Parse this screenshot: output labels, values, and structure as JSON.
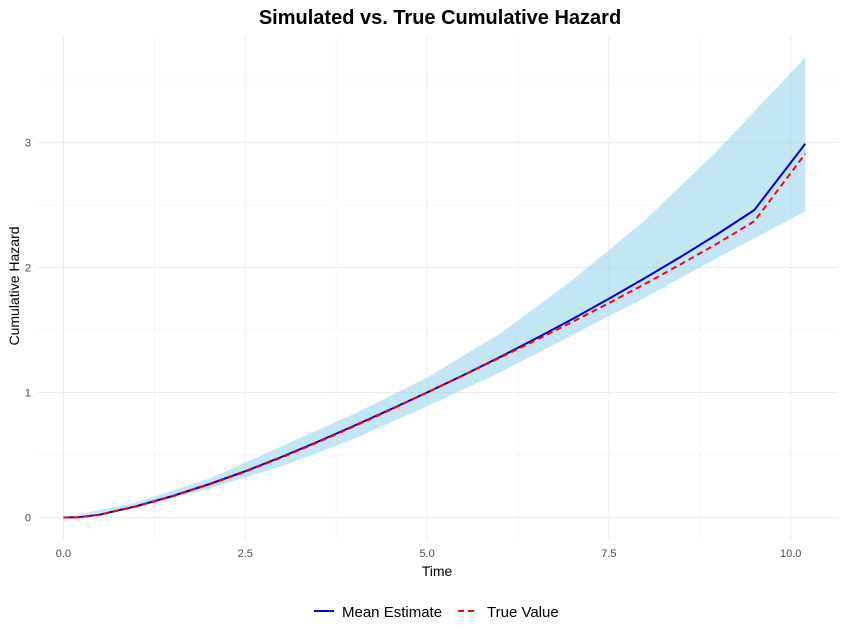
{
  "chart_data": {
    "type": "line",
    "title": "Simulated vs. True Cumulative Hazard",
    "xlabel": "Time",
    "ylabel": "Cumulative Hazard",
    "xlim": [
      -0.35,
      10.65
    ],
    "ylim": [
      -0.18,
      3.86
    ],
    "x_ticks": [
      0,
      2.5,
      5,
      7.5,
      10
    ],
    "x_tick_labels": [
      "0.0",
      "2.5",
      "5.0",
      "7.5",
      "10.0"
    ],
    "y_ticks": [
      0,
      1,
      2,
      3
    ],
    "y_tick_labels": [
      "0",
      "1",
      "2",
      "3"
    ],
    "grid": true,
    "legend_position": "bottom",
    "band": {
      "fill_color": "#87ceeb",
      "fill_opacity": 0.5,
      "x": [
        0,
        1,
        2,
        3,
        4,
        5,
        6,
        7,
        8,
        9,
        10.2
      ],
      "lower": [
        0,
        0.08,
        0.23,
        0.41,
        0.63,
        0.89,
        1.16,
        1.46,
        1.76,
        2.08,
        2.45
      ],
      "upper": [
        0,
        0.12,
        0.31,
        0.57,
        0.83,
        1.12,
        1.47,
        1.9,
        2.38,
        2.94,
        3.68
      ]
    },
    "series": [
      {
        "name": "Mean Estimate",
        "color": "#0000cd",
        "dash": "solid",
        "x": [
          0,
          0.2,
          0.5,
          1,
          1.5,
          2,
          2.5,
          3,
          3.5,
          4,
          4.5,
          5,
          5.5,
          6,
          6.5,
          7,
          7.5,
          8,
          8.5,
          9,
          9.5,
          10.2
        ],
        "y": [
          0,
          0.002,
          0.023,
          0.09,
          0.172,
          0.266,
          0.37,
          0.485,
          0.607,
          0.735,
          0.866,
          1.0,
          1.139,
          1.283,
          1.433,
          1.588,
          1.75,
          1.917,
          2.09,
          2.27,
          2.46,
          2.99
        ]
      },
      {
        "name": "True Value",
        "color": "#ff0000",
        "dash": "dashed",
        "x": [
          0,
          0.2,
          0.5,
          1,
          1.5,
          2,
          2.5,
          3,
          3.5,
          4,
          4.5,
          5,
          5.5,
          6,
          6.5,
          7,
          7.5,
          8,
          8.5,
          9,
          9.5,
          10.2
        ],
        "y": [
          0,
          0.002,
          0.022,
          0.088,
          0.17,
          0.263,
          0.366,
          0.48,
          0.602,
          0.73,
          0.862,
          1.0,
          1.138,
          1.278,
          1.42,
          1.565,
          1.715,
          1.87,
          2.03,
          2.195,
          2.37,
          2.91
        ]
      }
    ]
  }
}
